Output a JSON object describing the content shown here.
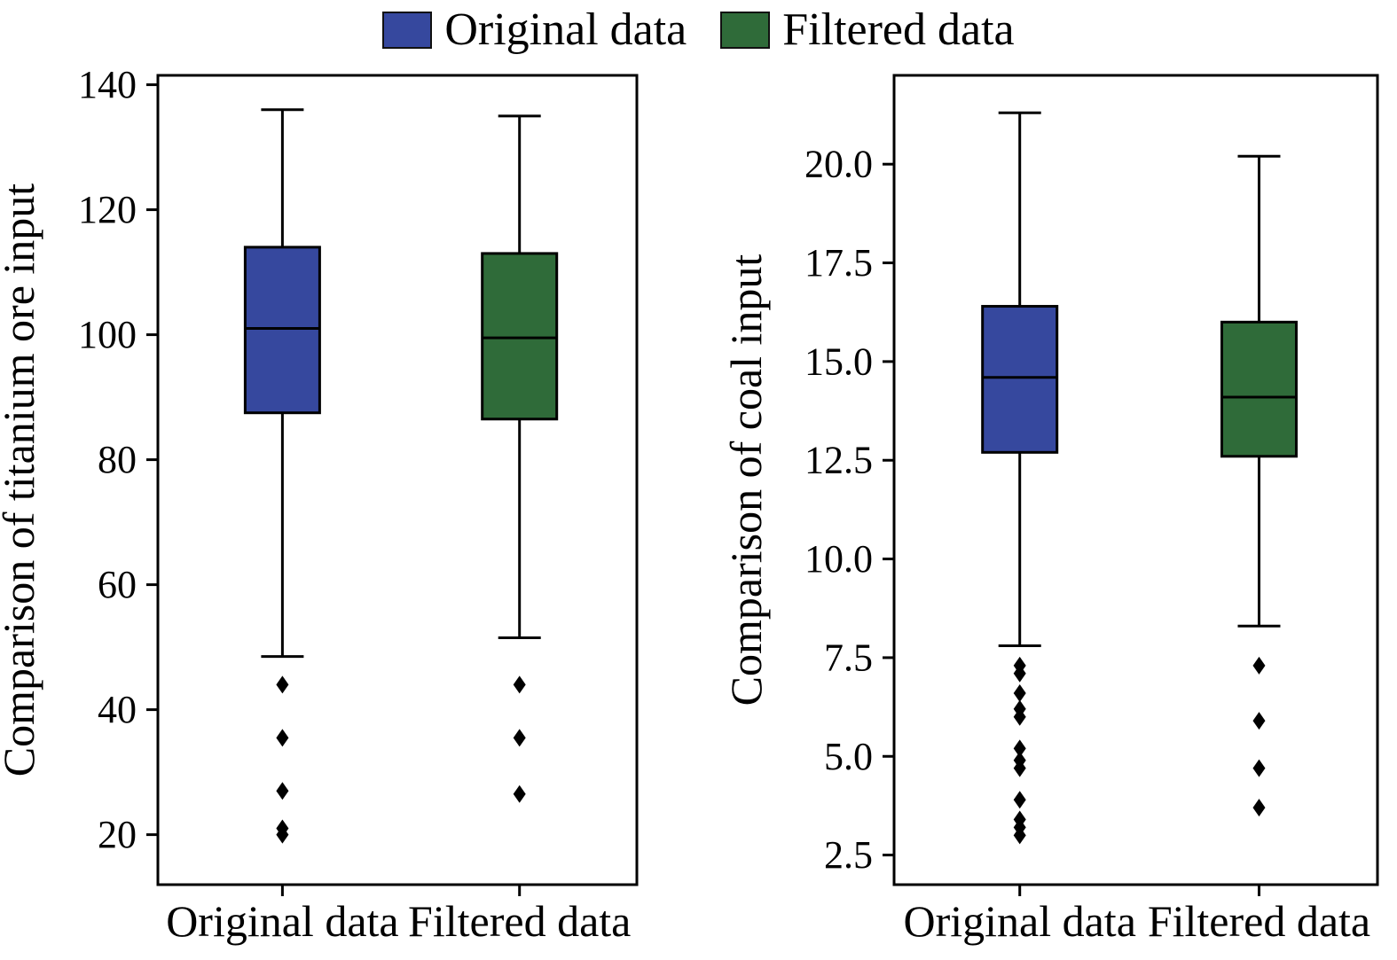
{
  "legend": [
    {
      "label": "Original data",
      "color": "#36489e"
    },
    {
      "label": "Filtered data",
      "color": "#2f6b39"
    }
  ],
  "chart_data": [
    {
      "type": "box",
      "title": "",
      "ylabel": "Comparison of titanium ore input",
      "categories": [
        "Original data",
        "Filtered data"
      ],
      "ylim": [
        12,
        141.5
      ],
      "yticks": [
        20,
        40,
        60,
        80,
        100,
        120,
        140
      ],
      "ytick_labels": [
        "20",
        "40",
        "60",
        "80",
        "100",
        "120",
        "140"
      ],
      "grid": false,
      "legend_position": "top",
      "series": [
        {
          "name": "Original data",
          "color": "#36489e",
          "whislo": 48.5,
          "q1": 87.5,
          "med": 101,
          "q3": 114,
          "whishi": 136,
          "fliers": [
            44,
            35.5,
            27,
            21,
            20
          ]
        },
        {
          "name": "Filtered data",
          "color": "#2f6b39",
          "whislo": 51.5,
          "q1": 86.5,
          "med": 99.5,
          "q3": 113,
          "whishi": 135,
          "fliers": [
            44,
            35.5,
            26.5
          ]
        }
      ]
    },
    {
      "type": "box",
      "title": "",
      "ylabel": "Comparison of coal input",
      "categories": [
        "Original data",
        "Filtered data"
      ],
      "ylim": [
        1.75,
        22.25
      ],
      "yticks": [
        2.5,
        5.0,
        7.5,
        10.0,
        12.5,
        15.0,
        17.5,
        20.0
      ],
      "ytick_labels": [
        "2.5",
        "5.0",
        "7.5",
        "10.0",
        "12.5",
        "15.0",
        "17.5",
        "20.0"
      ],
      "grid": false,
      "legend_position": "top",
      "series": [
        {
          "name": "Original data",
          "color": "#36489e",
          "whislo": 7.8,
          "q1": 12.7,
          "med": 14.6,
          "q3": 16.4,
          "whishi": 21.3,
          "fliers": [
            7.3,
            7.1,
            6.6,
            6.2,
            6.0,
            5.2,
            4.9,
            4.7,
            3.9,
            3.4,
            3.2,
            3.0
          ]
        },
        {
          "name": "Filtered data",
          "color": "#2f6b39",
          "whislo": 8.3,
          "q1": 12.6,
          "med": 14.1,
          "q3": 16.0,
          "whishi": 20.2,
          "fliers": [
            7.3,
            5.9,
            4.7,
            3.7
          ]
        }
      ]
    }
  ]
}
